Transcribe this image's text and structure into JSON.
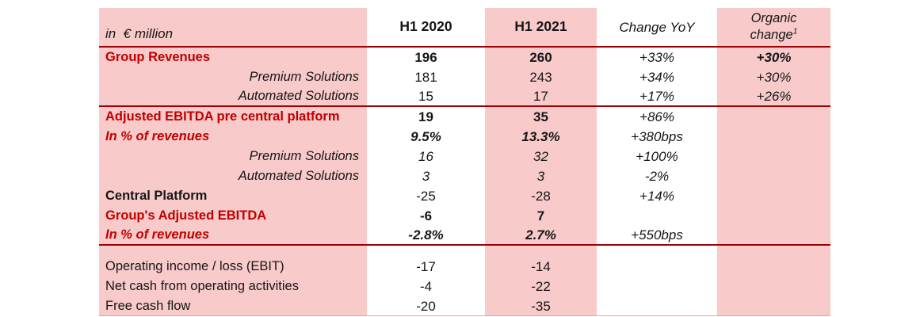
{
  "table": {
    "unit_label": "in  € million",
    "headers": {
      "h2020": "H1 2020",
      "h2021": "H1 2021",
      "change": "Change YoY",
      "organic_line1": "Organic",
      "organic_line2": "change",
      "organic_footnote": "1"
    },
    "rows": [
      {
        "label": "Group Revenues",
        "v2020": "196",
        "v2021": "260",
        "change": "+33%",
        "organic": "+30%",
        "style": {
          "label": "bold-red",
          "values": "bold",
          "change": "italic",
          "organic": "bold-italic"
        }
      },
      {
        "label": "Premium Solutions",
        "v2020": "181",
        "v2021": "243",
        "change": "+34%",
        "organic": "+30%",
        "style": {
          "label": "italic-right",
          "values": "plain",
          "change": "italic",
          "organic": "italic"
        }
      },
      {
        "label": "Automated Solutions",
        "v2020": "15",
        "v2021": "17",
        "change": "+17%",
        "organic": "+26%",
        "style": {
          "label": "italic-right",
          "values": "plain",
          "change": "italic",
          "organic": "italic"
        },
        "separator_below": true
      },
      {
        "label": "Adjusted EBITDA pre central platform",
        "v2020": "19",
        "v2021": "35",
        "change": "+86%",
        "organic": "",
        "style": {
          "label": "bold-red",
          "values": "bold",
          "change": "italic"
        }
      },
      {
        "label": "In % of revenues",
        "v2020": "9.5%",
        "v2021": "13.3%",
        "change": "+380bps",
        "organic": "",
        "style": {
          "label": "bold-italic-red",
          "values": "bold-italic",
          "change": "italic"
        }
      },
      {
        "label": "Premium Solutions",
        "v2020": "16",
        "v2021": "32",
        "change": "+100%",
        "organic": "",
        "style": {
          "label": "italic-right",
          "values": "italic",
          "change": "italic"
        }
      },
      {
        "label": "Automated Solutions",
        "v2020": "3",
        "v2021": "3",
        "change": "-2%",
        "organic": "",
        "style": {
          "label": "italic-right",
          "values": "italic",
          "change": "italic"
        }
      },
      {
        "label": "Central Platform",
        "v2020": "-25",
        "v2021": "-28",
        "change": "+14%",
        "organic": "",
        "style": {
          "label": "bold-black",
          "values": "plain",
          "change": "italic"
        }
      },
      {
        "label": "Group's Adjusted EBITDA",
        "v2020": "-6",
        "v2021": "7",
        "change": "",
        "organic": "",
        "style": {
          "label": "bold-red",
          "values": "bold"
        }
      },
      {
        "label": "In % of revenues",
        "v2020": "-2.8%",
        "v2021": "2.7%",
        "change": "+550bps",
        "organic": "",
        "style": {
          "label": "bold-italic-red",
          "values": "bold-italic",
          "change": "italic"
        },
        "separator_below": true
      },
      {
        "spacer": true
      },
      {
        "label": "Operating income / loss (EBIT)",
        "v2020": "-17",
        "v2021": "-14",
        "change": "",
        "organic": "",
        "style": {
          "label": "plain",
          "values": "plain"
        }
      },
      {
        "label": "Net cash from operating activities",
        "v2020": "-4",
        "v2021": "-22",
        "change": "",
        "organic": "",
        "style": {
          "label": "plain",
          "values": "plain"
        }
      },
      {
        "label": "Free cash flow",
        "v2020": "-20",
        "v2021": "-35",
        "change": "",
        "organic": "",
        "style": {
          "label": "plain-small",
          "values": "plain"
        },
        "last": true
      }
    ]
  },
  "colors": {
    "pink": "#F8CACA",
    "red_text": "#C00000",
    "separator_line": "#9C0006"
  }
}
